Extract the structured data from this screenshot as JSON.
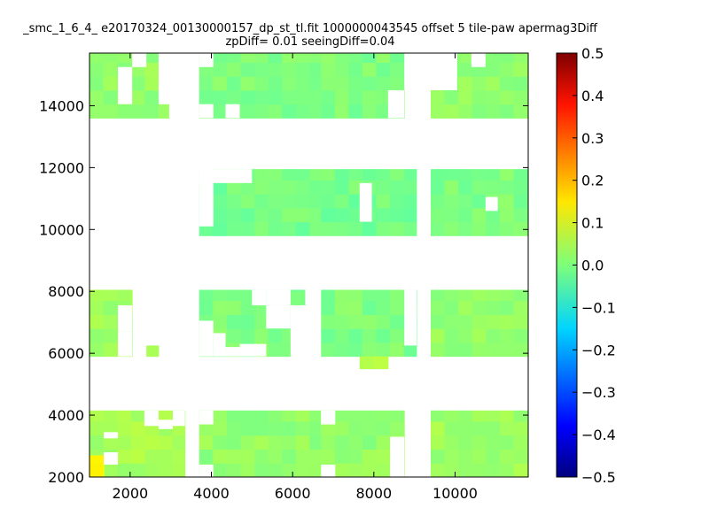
{
  "title_line1": "_smc_1_6_4_ e20170324_00130000157_dp_st_tl.fit 1000000043545 offset 5 tile-paw apermag3Diff",
  "title_line2": "zpDiff= 0.01 seeingDiff=0.04",
  "chart_data": {
    "type": "heatmap",
    "title": "_smc_1_6_4_ e20170324_00130000157_dp_st_tl.fit 1000000043545 offset 5 tile-paw apermag3Diff zpDiff= 0.01 seeingDiff=0.04",
    "xlabel": "",
    "ylabel": "",
    "xlim": [
      1000,
      11800
    ],
    "ylim": [
      2000,
      15700
    ],
    "xticks": [
      2000,
      4000,
      6000,
      8000,
      10000
    ],
    "yticks": [
      2000,
      4000,
      6000,
      8000,
      10000,
      12000,
      14000
    ],
    "colorbar": {
      "min": -0.5,
      "max": 0.5,
      "ticks": [
        "0.5",
        "0.4",
        "0.3",
        "0.2",
        "0.1",
        "0.0",
        "−0.1",
        "−0.2",
        "−0.3",
        "−0.4",
        "−0.5"
      ],
      "colormap": "jet"
    },
    "grid": false,
    "cell_size": [
      340,
      450
    ],
    "regions": [
      {
        "x": [
          1000,
          2700
        ],
        "y": [
          13600,
          15700
        ],
        "value": 0.02
      },
      {
        "x": [
          2700,
          2950
        ],
        "y": [
          13600,
          14050
        ],
        "value": 0.03
      },
      {
        "x": [
          3700,
          6700
        ],
        "y": [
          13600,
          15700
        ],
        "value": 0.0
      },
      {
        "x": [
          6700,
          8750
        ],
        "y": [
          13600,
          15700
        ],
        "value": 0.0
      },
      {
        "x": [
          9400,
          11800
        ],
        "y": [
          13600,
          15700
        ],
        "value": 0.02
      },
      {
        "x": [
          3700,
          6700
        ],
        "y": [
          9800,
          11950
        ],
        "value": -0.01
      },
      {
        "x": [
          6700,
          9050
        ],
        "y": [
          9800,
          11950
        ],
        "value": -0.01
      },
      {
        "x": [
          9400,
          11800
        ],
        "y": [
          9800,
          11950
        ],
        "value": 0.0
      },
      {
        "x": [
          1000,
          2050
        ],
        "y": [
          5900,
          8050
        ],
        "value": 0.03
      },
      {
        "x": [
          2400,
          2700
        ],
        "y": [
          5900,
          6250
        ],
        "value": 0.04
      },
      {
        "x": [
          3700,
          5950
        ],
        "y": [
          5900,
          8050
        ],
        "value": 0.0
      },
      {
        "x": [
          5950,
          6300
        ],
        "y": [
          7550,
          8050
        ],
        "value": 0.0
      },
      {
        "x": [
          6700,
          9050
        ],
        "y": [
          5900,
          8050
        ],
        "value": 0.0
      },
      {
        "x": [
          7650,
          8350
        ],
        "y": [
          5500,
          5900
        ],
        "value": 0.06
      },
      {
        "x": [
          9400,
          11800
        ],
        "y": [
          5900,
          8050
        ],
        "value": 0.02
      },
      {
        "x": [
          1000,
          3350
        ],
        "y": [
          2000,
          4150
        ],
        "value": 0.04
      },
      {
        "x": [
          1000,
          1350
        ],
        "y": [
          2000,
          2700
        ],
        "value": 0.14
      },
      {
        "x": [
          3700,
          6700
        ],
        "y": [
          2000,
          4150
        ],
        "value": 0.02
      },
      {
        "x": [
          6700,
          8750
        ],
        "y": [
          2000,
          4150
        ],
        "value": 0.02
      },
      {
        "x": [
          9400,
          11800
        ],
        "y": [
          2000,
          4150
        ],
        "value": 0.03
      }
    ],
    "holes": [
      {
        "x": [
          1700,
          2050
        ],
        "y": [
          14050,
          15250
        ]
      },
      {
        "x": [
          2050,
          2400
        ],
        "y": [
          15250,
          15700
        ]
      },
      {
        "x": [
          2700,
          2950
        ],
        "y": [
          14050,
          15700
        ]
      },
      {
        "x": [
          3700,
          4050
        ],
        "y": [
          15250,
          15700
        ]
      },
      {
        "x": [
          3700,
          4050
        ],
        "y": [
          13600,
          14050
        ]
      },
      {
        "x": [
          4350,
          4700
        ],
        "y": [
          13600,
          14050
        ]
      },
      {
        "x": [
          8350,
          8750
        ],
        "y": [
          13600,
          14500
        ]
      },
      {
        "x": [
          8750,
          9050
        ],
        "y": [
          14500,
          15700
        ]
      },
      {
        "x": [
          9400,
          10050
        ],
        "y": [
          14500,
          15700
        ]
      },
      {
        "x": [
          10400,
          10750
        ],
        "y": [
          15250,
          15700
        ]
      },
      {
        "x": [
          3700,
          4050
        ],
        "y": [
          10100,
          11950
        ]
      },
      {
        "x": [
          3700,
          5000
        ],
        "y": [
          11500,
          11950
        ]
      },
      {
        "x": [
          7650,
          7950
        ],
        "y": [
          10250,
          11500
        ]
      },
      {
        "x": [
          10750,
          11050
        ],
        "y": [
          10600,
          11050
        ]
      },
      {
        "x": [
          1700,
          2050
        ],
        "y": [
          6700,
          7550
        ]
      },
      {
        "x": [
          1700,
          2050
        ],
        "y": [
          5900,
          6700
        ]
      },
      {
        "x": [
          3700,
          4050
        ],
        "y": [
          7000,
          7000
        ]
      },
      {
        "x": [
          4050,
          4350
        ],
        "y": [
          5900,
          6650
        ]
      },
      {
        "x": [
          3700,
          4050
        ],
        "y": [
          5900,
          7050
        ]
      },
      {
        "x": [
          4350,
          4700
        ],
        "y": [
          5900,
          6200
        ]
      },
      {
        "x": [
          4700,
          5350
        ],
        "y": [
          5900,
          6300
        ]
      },
      {
        "x": [
          5350,
          5950
        ],
        "y": [
          6800,
          7550
        ]
      },
      {
        "x": [
          5950,
          6300
        ],
        "y": [
          5900,
          7550
        ]
      },
      {
        "x": [
          5000,
          5350
        ],
        "y": [
          7550,
          8050
        ]
      },
      {
        "x": [
          5350,
          5950
        ],
        "y": [
          7550,
          8050
        ]
      },
      {
        "x": [
          8750,
          9050
        ],
        "y": [
          6250,
          8050
        ]
      },
      {
        "x": [
          1350,
          1700
        ],
        "y": [
          3250,
          3450
        ]
      },
      {
        "x": [
          1350,
          1700
        ],
        "y": [
          2400,
          2800
        ]
      },
      {
        "x": [
          2350,
          2700
        ],
        "y": [
          3650,
          4150
        ]
      },
      {
        "x": [
          2700,
          3050
        ],
        "y": [
          3550,
          3850
        ]
      },
      {
        "x": [
          3050,
          3350
        ],
        "y": [
          3650,
          4150
        ]
      },
      {
        "x": [
          3700,
          4050
        ],
        "y": [
          2000,
          2400
        ]
      },
      {
        "x": [
          3700,
          4050
        ],
        "y": [
          3700,
          4150
        ]
      },
      {
        "x": [
          6700,
          7050
        ],
        "y": [
          3700,
          4150
        ]
      },
      {
        "x": [
          6700,
          7050
        ],
        "y": [
          2000,
          2400
        ]
      },
      {
        "x": [
          8400,
          8750
        ],
        "y": [
          2000,
          3300
        ]
      }
    ]
  }
}
